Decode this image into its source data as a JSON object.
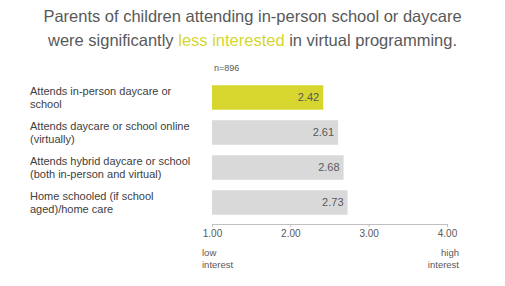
{
  "chart_data": {
    "type": "bar",
    "orientation": "horizontal",
    "title": [
      "Parents of children attending in-person school or daycare",
      "were significantly less interested in virtual programming."
    ],
    "title_highlight": "less interested",
    "note": "n=896",
    "categories": [
      "Attends in-person daycare or school",
      "Attends daycare or school online (virtually)",
      "Attends hybrid daycare or school (both in-person and virtual)",
      "Home schooled (if school aged)/home care"
    ],
    "values": [
      2.42,
      2.61,
      2.68,
      2.73
    ],
    "colors": [
      "#d6d62e",
      "#d9d9d9",
      "#d9d9d9",
      "#d9d9d9"
    ],
    "data_labels": true,
    "xlim": [
      1,
      4
    ],
    "xticks": [
      {
        "value": 1,
        "label": "1.00"
      },
      {
        "value": 2,
        "label": "2.00"
      },
      {
        "value": 3,
        "label": "3.00"
      },
      {
        "value": 4,
        "label": "4.00"
      }
    ],
    "x_end_labels": [
      "low interest",
      "high interest"
    ],
    "grid": false
  }
}
